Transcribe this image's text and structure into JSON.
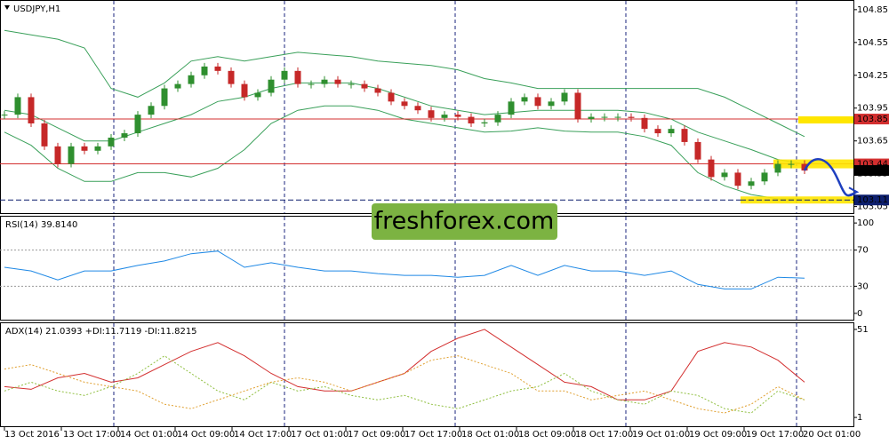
{
  "chart_data": [
    {
      "type": "candlestick",
      "title": "USDJPY,H1",
      "close": [
        103.89,
        104.05,
        103.81,
        103.6,
        103.44,
        103.6,
        103.56,
        103.6,
        103.68,
        103.72,
        103.89,
        103.97,
        104.13,
        104.17,
        104.25,
        104.33,
        104.29,
        104.17,
        104.05,
        104.09,
        104.21,
        104.29,
        104.17,
        104.17,
        104.21,
        104.17,
        104.17,
        104.13,
        104.09,
        104.01,
        103.97,
        103.93,
        103.86,
        103.89,
        103.87,
        103.81,
        103.82,
        103.89,
        104.01,
        104.05,
        103.97,
        104.01,
        104.09,
        103.85,
        103.87,
        103.87,
        103.87,
        103.86,
        103.76,
        103.72,
        103.76,
        103.64,
        103.48,
        103.32,
        103.36,
        103.24,
        103.28,
        103.36,
        103.44,
        103.44,
        103.38
      ],
      "up_color": "#2f8f2f",
      "down_color": "#c62828",
      "band_color": "#3aa05a",
      "bands": [
        [
          104.66,
          104.62,
          104.58,
          104.5,
          104.13,
          104.05,
          104.18,
          104.38,
          104.42,
          104.38,
          104.42,
          104.46,
          104.44,
          104.42,
          104.38,
          104.36,
          104.34,
          104.3,
          104.22,
          104.18,
          104.13,
          104.13,
          104.13,
          104.13,
          104.13,
          104.13,
          104.13,
          104.05,
          103.93,
          103.81,
          103.69
        ],
        [
          103.93,
          103.89,
          103.77,
          103.65,
          103.65,
          103.73,
          103.81,
          103.89,
          104.01,
          104.05,
          104.13,
          104.18,
          104.18,
          104.18,
          104.13,
          104.05,
          103.97,
          103.93,
          103.89,
          103.91,
          103.93,
          103.93,
          103.93,
          103.93,
          103.91,
          103.85,
          103.73,
          103.65,
          103.57,
          103.48,
          103.44
        ],
        [
          103.73,
          103.61,
          103.4,
          103.28,
          103.28,
          103.36,
          103.36,
          103.32,
          103.4,
          103.57,
          103.81,
          103.93,
          103.97,
          103.97,
          103.93,
          103.85,
          103.81,
          103.77,
          103.73,
          103.74,
          103.77,
          103.74,
          103.73,
          103.73,
          103.69,
          103.61,
          103.36,
          103.24,
          103.16,
          103.12,
          103.12
        ]
      ],
      "levels": [
        103.85,
        103.44
      ],
      "level_color": "#d32f2f",
      "current": 103.38,
      "current_color": "#000000",
      "target": 103.11,
      "target_color": "#0d1f6e",
      "ylim": [
        102.99,
        104.93
      ],
      "yticks": [
        104.85,
        104.55,
        104.25,
        103.95,
        103.65,
        103.35,
        103.05
      ]
    },
    {
      "type": "line",
      "title": "RSI(14) 39.8140",
      "series": [
        {
          "color": "#1e88e5",
          "values": [
            51,
            47,
            37,
            47,
            47,
            53,
            58,
            66,
            69,
            51,
            56,
            51,
            47,
            47,
            44,
            42,
            42,
            40,
            42,
            53,
            42,
            53,
            47,
            47,
            42,
            47,
            32,
            27,
            27,
            40,
            39
          ]
        }
      ],
      "ylim": [
        -7,
        107
      ],
      "yticks": [
        100,
        70,
        30,
        0
      ],
      "grid": true
    },
    {
      "type": "line",
      "title": "ADX(14) 21.0393 +DI:11.7119 -DI:11.8215",
      "series": [
        {
          "color": "#d32f2f",
          "dash": "none",
          "values": [
            18.5,
            17,
            23.5,
            26,
            21,
            23.5,
            31,
            38.5,
            43.5,
            36,
            26,
            18.5,
            16,
            16,
            21,
            26,
            38.5,
            46,
            51,
            41,
            31,
            21,
            18.5,
            11,
            11,
            16,
            38.5,
            43.5,
            41,
            33.5,
            21
          ]
        },
        {
          "color": "#8fbf3f",
          "dash": "2,2",
          "values": [
            16,
            21,
            16,
            13.5,
            18.5,
            26,
            36,
            26,
            16,
            11,
            21,
            16,
            18.5,
            13.5,
            11,
            13.5,
            8.5,
            6,
            11,
            16,
            18.5,
            26,
            16,
            11,
            8.5,
            16,
            13.5,
            6,
            3.5,
            16,
            11
          ]
        },
        {
          "color": "#e0a030",
          "dash": "2,2",
          "values": [
            28.5,
            31,
            26,
            21,
            18.5,
            16,
            8.5,
            6,
            11,
            16,
            21,
            23.5,
            21,
            16,
            21,
            26,
            33.5,
            36,
            31,
            26,
            16,
            16,
            11,
            13.5,
            16,
            11,
            6,
            3.5,
            8.5,
            18.5,
            11
          ]
        }
      ],
      "ylim": [
        -4,
        54.5
      ],
      "yticks": [
        51,
        1
      ],
      "grid": false
    }
  ],
  "x_labels": [
    "13 Oct 2016",
    "13 Oct 17:00",
    "14 Oct 01:00",
    "14 Oct 09:00",
    "14 Oct 17:00",
    "17 Oct 01:00",
    "17 Oct 09:00",
    "17 Oct 17:00",
    "18 Oct 01:00",
    "18 Oct 09:00",
    "18 Oct 17:00",
    "19 Oct 01:00",
    "19 Oct 09:00",
    "19 Oct 17:00",
    "20 Oct 01:00"
  ],
  "watermark": "freshforex.com"
}
